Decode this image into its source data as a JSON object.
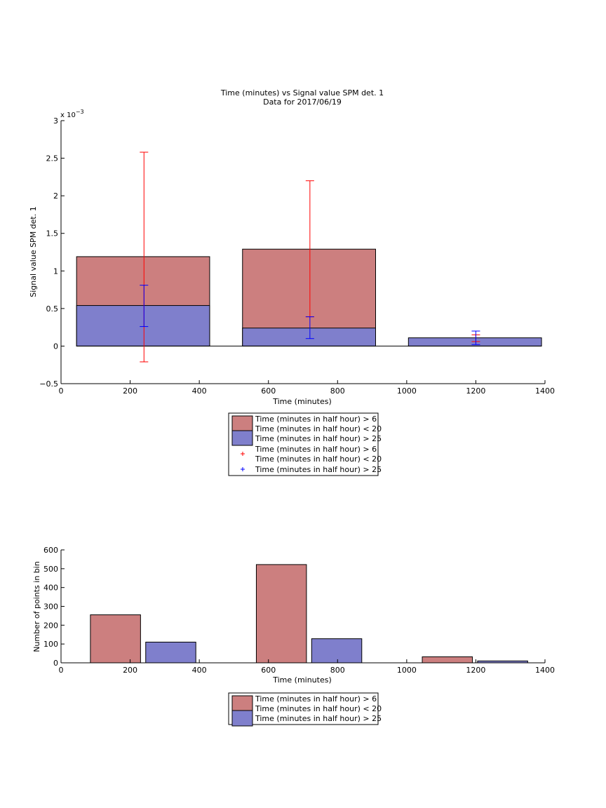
{
  "colors": {
    "red": "#cc7f7f",
    "blue": "#7f7fcc",
    "red_err": "#ff0000",
    "blue_err": "#0000ff"
  },
  "chart_data": [
    {
      "type": "bar",
      "title": "Time (minutes) vs Signal value SPM det. 1",
      "subtitle": "Data for 2017/06/19",
      "xlabel": "Time (minutes)",
      "ylabel": "Signal value SPM det. 1",
      "exponent_base": "x 10",
      "exponent_power": "−3",
      "xlim": [
        0,
        1400
      ],
      "ylim": [
        -0.5,
        3
      ],
      "x_ticks": [
        0,
        200,
        400,
        600,
        800,
        1000,
        1200,
        1400
      ],
      "y_ticks": [
        -0.5,
        0,
        0.5,
        1,
        1.5,
        2,
        2.5,
        3
      ],
      "y_tick_labels": [
        "−0.5",
        "0",
        "0.5",
        "1",
        "1.5",
        "2",
        "2.5",
        "3"
      ],
      "bars": [
        {
          "x0": 45,
          "x1": 430,
          "red": 1.19,
          "blue": 0.54
        },
        {
          "x0": 525,
          "x1": 910,
          "red": 1.29,
          "blue": 0.24
        },
        {
          "x0": 1005,
          "x1": 1390,
          "red": 0,
          "blue": 0.11
        }
      ],
      "error_bars": [
        {
          "x": 240,
          "series": "red",
          "low": -0.21,
          "high": 2.58
        },
        {
          "x": 240,
          "series": "blue",
          "low": 0.26,
          "high": 0.81
        },
        {
          "x": 720,
          "series": "red",
          "low": 0.39,
          "high": 2.2
        },
        {
          "x": 720,
          "series": "blue",
          "low": 0.1,
          "high": 0.39
        },
        {
          "x": 1200,
          "series": "red",
          "low": 0.06,
          "high": 0.15
        },
        {
          "x": 1200,
          "series": "blue",
          "low": 0.02,
          "high": 0.2
        }
      ],
      "legend": {
        "placement": "below",
        "red_line1": "Time (minutes in half hour) > 6",
        "red_line2": "Time (minutes in half hour) < 20",
        "blue_line1": "Time (minutes in half hour) > 25",
        "err_red_line1": "Time (minutes in half hour) > 6",
        "err_red_line2": "Time (minutes in half hour) < 20",
        "err_blue_line1": "Time (minutes in half hour) > 25"
      }
    },
    {
      "type": "bar",
      "xlabel": "Time (minutes)",
      "ylabel": "Number of points in bin",
      "xlim": [
        0,
        1400
      ],
      "ylim": [
        0,
        600
      ],
      "x_ticks": [
        0,
        200,
        400,
        600,
        800,
        1000,
        1200,
        1400
      ],
      "y_ticks": [
        0,
        100,
        200,
        300,
        400,
        500,
        600
      ],
      "bars": [
        {
          "series": "red",
          "x0": 85,
          "x1": 230,
          "value": 255
        },
        {
          "series": "blue",
          "x0": 245,
          "x1": 390,
          "value": 110
        },
        {
          "series": "red",
          "x0": 565,
          "x1": 710,
          "value": 522
        },
        {
          "series": "blue",
          "x0": 725,
          "x1": 870,
          "value": 128
        },
        {
          "series": "red",
          "x0": 1045,
          "x1": 1190,
          "value": 32
        },
        {
          "series": "blue",
          "x0": 1205,
          "x1": 1350,
          "value": 10
        }
      ],
      "legend": {
        "placement": "below",
        "red_line1": "Time (minutes in half hour) > 6",
        "red_line2": "Time (minutes in half hour) < 20",
        "blue_line1": "Time (minutes in half hour) > 25"
      }
    }
  ]
}
